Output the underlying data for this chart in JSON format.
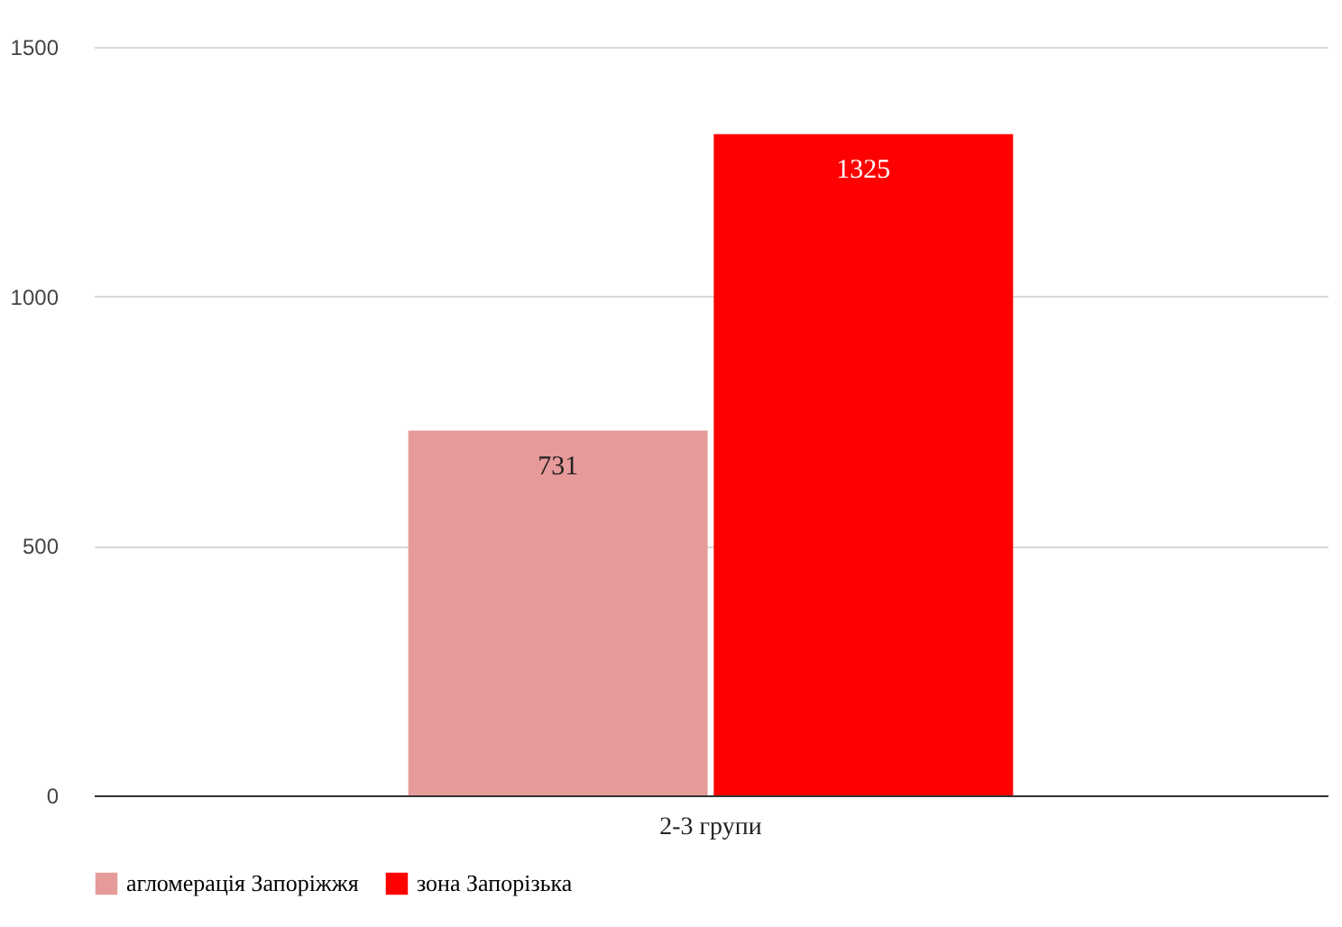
{
  "chart_data": {
    "type": "bar",
    "categories": [
      "2-3 групи"
    ],
    "series": [
      {
        "name": "агломерація  Запоріжжя",
        "color": "#e69a9a",
        "values": [
          731
        ]
      },
      {
        "name": "зона  Запорізька",
        "color": "#ff0000",
        "values": [
          1325
        ]
      }
    ],
    "ylim": [
      0,
      1500
    ],
    "yticks": [
      0,
      500,
      1000,
      1500
    ],
    "grid": "y",
    "legend": "bottom",
    "data_labels": true
  }
}
